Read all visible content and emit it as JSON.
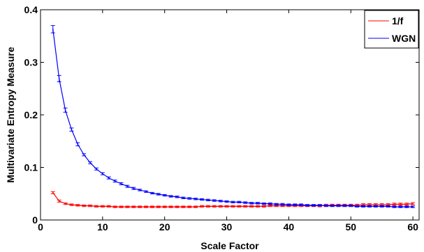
{
  "chart_data": {
    "type": "line",
    "title": "",
    "xlabel": "Scale Factor",
    "ylabel": "Multivariate Entropy Measure",
    "xlim": [
      0,
      61
    ],
    "ylim": [
      0,
      0.4
    ],
    "xticks": [
      0,
      10,
      20,
      30,
      40,
      50,
      60
    ],
    "yticks": [
      0,
      0.1,
      0.2,
      0.3,
      0.4
    ],
    "xtick_labels": [
      "0",
      "10",
      "20",
      "30",
      "40",
      "50",
      "60"
    ],
    "ytick_labels": [
      "0",
      "0.1",
      "0.2",
      "0.3",
      "0.4"
    ],
    "grid": false,
    "legend_position": "top-right",
    "x": [
      2,
      3,
      4,
      5,
      6,
      7,
      8,
      9,
      10,
      11,
      12,
      13,
      14,
      15,
      16,
      17,
      18,
      19,
      20,
      21,
      22,
      23,
      24,
      25,
      26,
      27,
      28,
      29,
      30,
      31,
      32,
      33,
      34,
      35,
      36,
      37,
      38,
      39,
      40,
      41,
      42,
      43,
      44,
      45,
      46,
      47,
      48,
      49,
      50,
      51,
      52,
      53,
      54,
      55,
      56,
      57,
      58,
      59,
      60
    ],
    "series": [
      {
        "name": "1/f",
        "color": "#ff0000",
        "values": [
          0.052,
          0.036,
          0.031,
          0.029,
          0.028,
          0.027,
          0.027,
          0.026,
          0.026,
          0.026,
          0.025,
          0.025,
          0.025,
          0.025,
          0.025,
          0.025,
          0.025,
          0.025,
          0.025,
          0.025,
          0.025,
          0.025,
          0.025,
          0.025,
          0.026,
          0.026,
          0.026,
          0.026,
          0.026,
          0.026,
          0.026,
          0.026,
          0.026,
          0.026,
          0.026,
          0.027,
          0.027,
          0.027,
          0.027,
          0.027,
          0.027,
          0.027,
          0.027,
          0.027,
          0.028,
          0.028,
          0.028,
          0.028,
          0.028,
          0.028,
          0.029,
          0.029,
          0.029,
          0.029,
          0.029,
          0.03,
          0.03,
          0.03,
          0.031
        ],
        "errors": [
          0.002,
          0.002,
          0.0015,
          0.0015,
          0.0015,
          0.0015,
          0.0015,
          0.0015,
          0.0015,
          0.0015,
          0.0015,
          0.0015,
          0.0015,
          0.0015,
          0.0015,
          0.0015,
          0.0015,
          0.0015,
          0.0015,
          0.0015,
          0.0015,
          0.0015,
          0.0015,
          0.0015,
          0.0015,
          0.0015,
          0.0015,
          0.0015,
          0.0015,
          0.0015,
          0.0015,
          0.0015,
          0.0015,
          0.0015,
          0.0015,
          0.0015,
          0.0015,
          0.0015,
          0.0015,
          0.0015,
          0.0015,
          0.0015,
          0.0015,
          0.002,
          0.002,
          0.002,
          0.002,
          0.002,
          0.002,
          0.002,
          0.002,
          0.002,
          0.002,
          0.002,
          0.002,
          0.002,
          0.002,
          0.002,
          0.002
        ]
      },
      {
        "name": "WGN",
        "color": "#0000ff",
        "values": [
          0.363,
          0.269,
          0.209,
          0.172,
          0.144,
          0.124,
          0.109,
          0.097,
          0.088,
          0.08,
          0.074,
          0.069,
          0.064,
          0.06,
          0.057,
          0.054,
          0.051,
          0.049,
          0.047,
          0.045,
          0.044,
          0.042,
          0.041,
          0.04,
          0.039,
          0.038,
          0.037,
          0.036,
          0.035,
          0.034,
          0.034,
          0.033,
          0.032,
          0.032,
          0.031,
          0.031,
          0.03,
          0.03,
          0.029,
          0.029,
          0.029,
          0.028,
          0.028,
          0.028,
          0.027,
          0.027,
          0.027,
          0.027,
          0.027,
          0.026,
          0.026,
          0.026,
          0.026,
          0.026,
          0.026,
          0.025,
          0.025,
          0.025,
          0.025
        ],
        "errors": [
          0.007,
          0.006,
          0.004,
          0.003,
          0.003,
          0.002,
          0.002,
          0.002,
          0.002,
          0.002,
          0.002,
          0.002,
          0.002,
          0.002,
          0.0015,
          0.0015,
          0.0015,
          0.0015,
          0.0015,
          0.0015,
          0.0015,
          0.0015,
          0.0015,
          0.0015,
          0.0015,
          0.0015,
          0.0015,
          0.0015,
          0.0015,
          0.0015,
          0.0015,
          0.0015,
          0.0015,
          0.0015,
          0.0015,
          0.0015,
          0.0015,
          0.0015,
          0.0015,
          0.0015,
          0.0015,
          0.0015,
          0.0015,
          0.0015,
          0.0015,
          0.0015,
          0.0015,
          0.0015,
          0.0015,
          0.0015,
          0.0015,
          0.0015,
          0.0015,
          0.0015,
          0.0015,
          0.0015,
          0.0015,
          0.0015,
          0.0015
        ]
      }
    ]
  }
}
